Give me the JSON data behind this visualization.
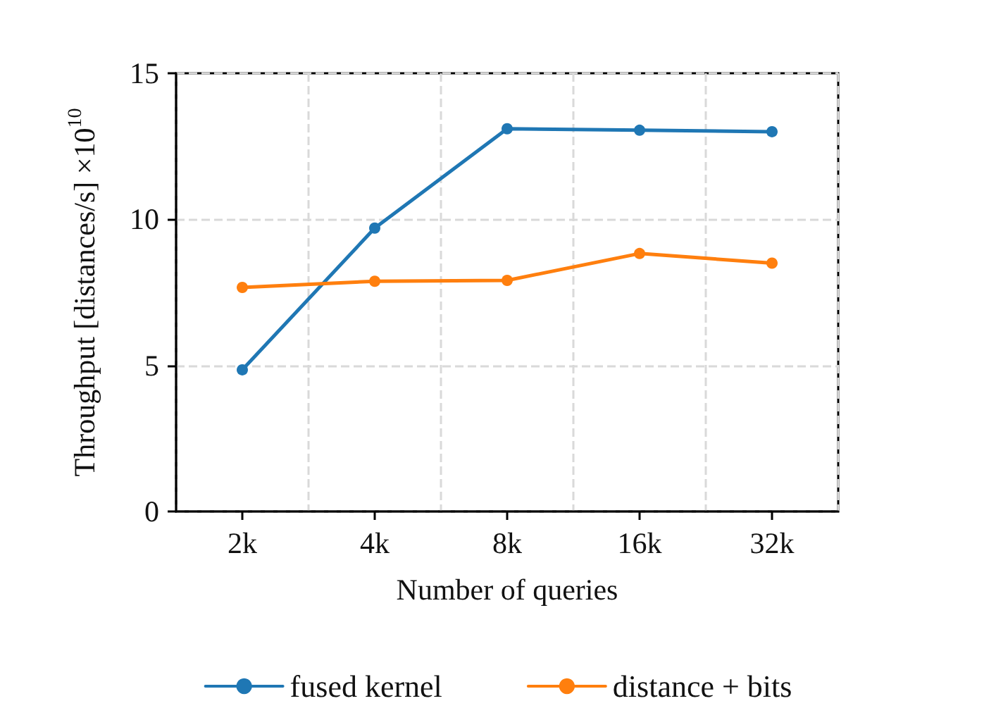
{
  "chart_data": {
    "type": "line",
    "xlabel": "Number of queries",
    "ylabel": "Throughput [distances/s] ×10$^{10}$",
    "categories": [
      "2k",
      "4k",
      "8k",
      "16k",
      "32k"
    ],
    "series": [
      {
        "name": "fused kernel",
        "color": "#1f77b4",
        "values": [
          4.85,
          9.7,
          13.1,
          13.05,
          13.0
        ]
      },
      {
        "name": "distance + bits",
        "color": "#ff7f0e",
        "values": [
          7.67,
          7.88,
          7.91,
          8.83,
          8.5
        ]
      }
    ],
    "ylim": [
      0,
      15
    ],
    "yticks": [
      0,
      5,
      10,
      15
    ],
    "grid": true,
    "legend": "bottom",
    "marker": "circle",
    "line_style": "solid"
  }
}
